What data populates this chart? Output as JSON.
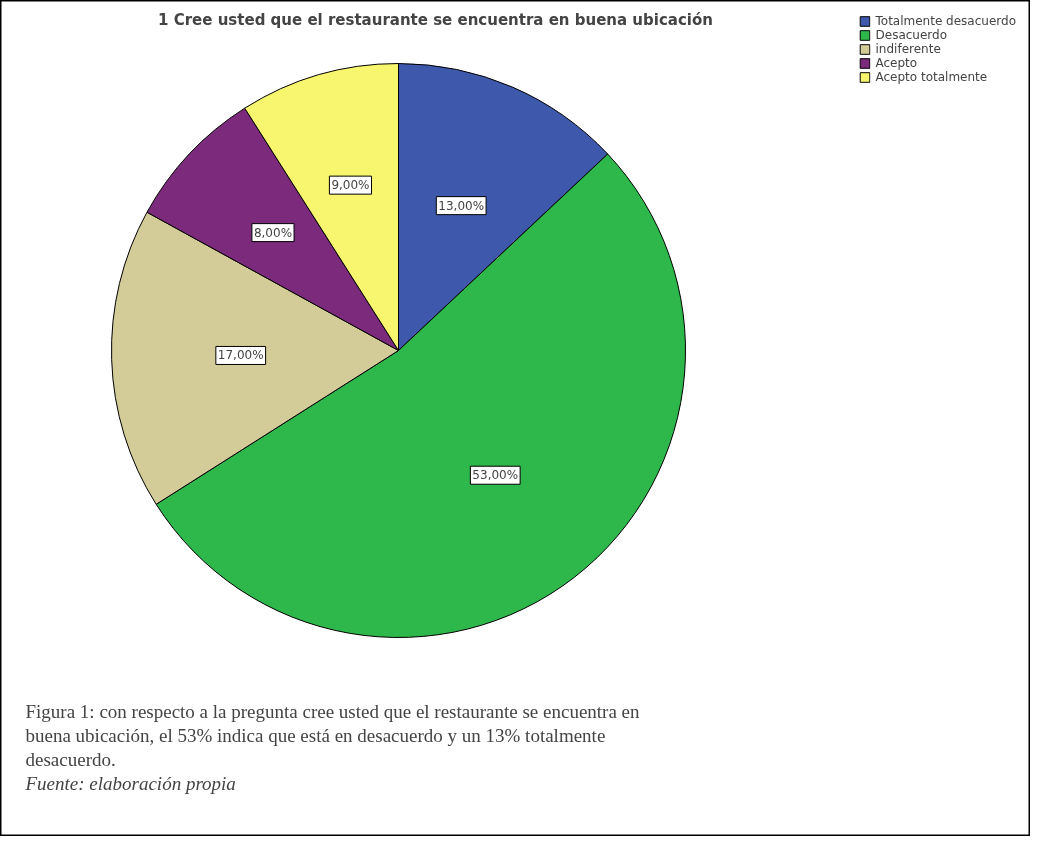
{
  "chart_data": {
    "type": "pie",
    "title": "1 Cree usted que el restaurante se encuentra en buena ubicación",
    "categories": [
      "Totalmente desacuerdo",
      "Desacuerdo",
      "indiferente",
      "Acepto",
      "Acepto totalmente"
    ],
    "values": [
      13,
      53,
      17,
      8,
      9
    ],
    "colors": [
      "#3e58ac",
      "#2eb84b",
      "#d4cc98",
      "#7b2a7c",
      "#f8f56e"
    ],
    "value_labels": [
      "13,00%",
      "53,00%",
      "17,00%",
      "8,00%",
      "9,00%"
    ],
    "legend": "top right",
    "annotations": [
      "Figura 1: con respecto a la pregunta cree usted que el restaurante se encuentra en buena ubicación, el 53% indica que está en desacuerdo y un 13% totalmente desacuerdo.",
      "Fuente: elaboración propia"
    ]
  }
}
